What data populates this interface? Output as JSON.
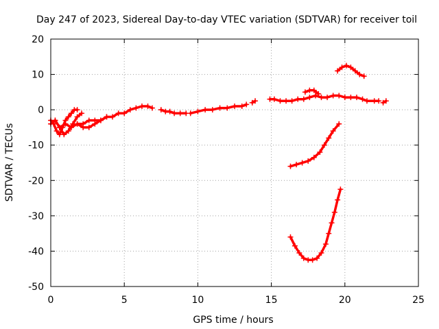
{
  "chart_data": {
    "type": "scatter",
    "title": "Day 247 of 2023, Sidereal Day-to-day VTEC variation (SDTVAR) for receiver toil",
    "xlabel": "GPS time / hours",
    "ylabel": "SDTVAR / TECUs",
    "xlim": [
      0,
      25
    ],
    "ylim": [
      -50,
      20
    ],
    "xticks": [
      0,
      5,
      10,
      15,
      20,
      25
    ],
    "yticks": [
      -50,
      -40,
      -30,
      -20,
      -10,
      0,
      10,
      20
    ],
    "grid": true,
    "legend": "none",
    "color": "#ff0000",
    "marker": "plus",
    "series": [
      {
        "x": [
          0.0,
          0.3,
          0.6,
          1.0,
          1.4,
          1.8,
          2.2,
          2.6,
          3.0,
          3.4,
          3.8,
          4.2,
          4.6,
          5.0,
          5.4,
          5.8,
          6.2,
          6.6,
          6.9
        ],
        "y": [
          -4,
          -3,
          -5,
          -4,
          -5,
          -4,
          -4,
          -3,
          -3,
          -3,
          -2,
          -2,
          -1,
          -1,
          0,
          0.5,
          1,
          1,
          0.5
        ]
      },
      {
        "x": [
          0.0,
          0.2,
          0.4,
          0.6,
          0.8,
          1.0,
          1.2,
          1.4,
          1.6,
          1.8
        ],
        "y": [
          -3,
          -4,
          -6,
          -7,
          -5,
          -3,
          -2,
          -1,
          0,
          0
        ]
      },
      {
        "x": [
          0.3,
          0.6,
          0.9,
          1.2,
          1.5,
          1.8,
          2.1
        ],
        "y": [
          -3,
          -5,
          -7,
          -6,
          -4,
          -2,
          -1
        ]
      },
      {
        "x": [
          1.8,
          2.2,
          2.6,
          3.0,
          3.4,
          3.8
        ],
        "y": [
          -4,
          -5,
          -5,
          -4,
          -3,
          -2
        ]
      },
      {
        "x": [
          7.5,
          7.8,
          8.1,
          8.4,
          8.8,
          9.2
        ],
        "y": [
          0,
          -0.5,
          -0.5,
          -1,
          -1,
          -1
        ]
      },
      {
        "x": [
          9.5,
          10.0,
          10.5,
          11.0,
          11.5,
          12.0,
          12.5,
          13.0,
          13.3
        ],
        "y": [
          -1,
          -0.5,
          0,
          0,
          0.5,
          0.5,
          1,
          1,
          1.5
        ]
      },
      {
        "x": [
          13.7,
          13.9
        ],
        "y": [
          2,
          2.5
        ]
      },
      {
        "x": [
          14.9,
          15.2,
          15.6,
          16.0,
          16.4,
          16.8,
          17.2,
          17.6,
          18.0,
          18.4,
          18.8,
          19.2,
          19.6,
          20.0,
          20.4,
          20.8,
          21.2,
          21.5,
          22.0,
          22.3
        ],
        "y": [
          3,
          3,
          2.5,
          2.5,
          2.5,
          3,
          3,
          3.5,
          4,
          3.5,
          3.5,
          4,
          4,
          3.5,
          3.5,
          3.5,
          3,
          2.5,
          2.5,
          2.5
        ]
      },
      {
        "x": [
          17.3,
          17.6,
          17.9,
          18.2
        ],
        "y": [
          5,
          5.5,
          5.5,
          4.5
        ]
      },
      {
        "x": [
          22.6,
          22.8
        ],
        "y": [
          2,
          2.5
        ]
      },
      {
        "x": [
          19.5,
          19.8,
          20.1,
          20.4,
          20.7,
          21.0,
          21.3
        ],
        "y": [
          11,
          12,
          12.5,
          12,
          11,
          10,
          9.5
        ]
      },
      {
        "x": [
          16.3,
          16.7,
          17.1,
          17.5,
          17.9,
          18.3,
          18.6,
          18.9,
          19.2,
          19.6
        ],
        "y": [
          -16,
          -15.5,
          -15,
          -14.5,
          -13.5,
          -12,
          -10,
          -8,
          -6,
          -4
        ]
      },
      {
        "x": [
          16.3,
          16.6,
          16.9,
          17.2,
          17.5,
          17.8,
          18.1,
          18.4,
          18.7,
          18.9,
          19.1,
          19.3,
          19.5,
          19.7
        ],
        "y": [
          -36,
          -38.5,
          -40.5,
          -42,
          -42.5,
          -42.5,
          -42,
          -40.5,
          -38,
          -35,
          -32,
          -29,
          -25.5,
          -22.5
        ]
      }
    ]
  }
}
